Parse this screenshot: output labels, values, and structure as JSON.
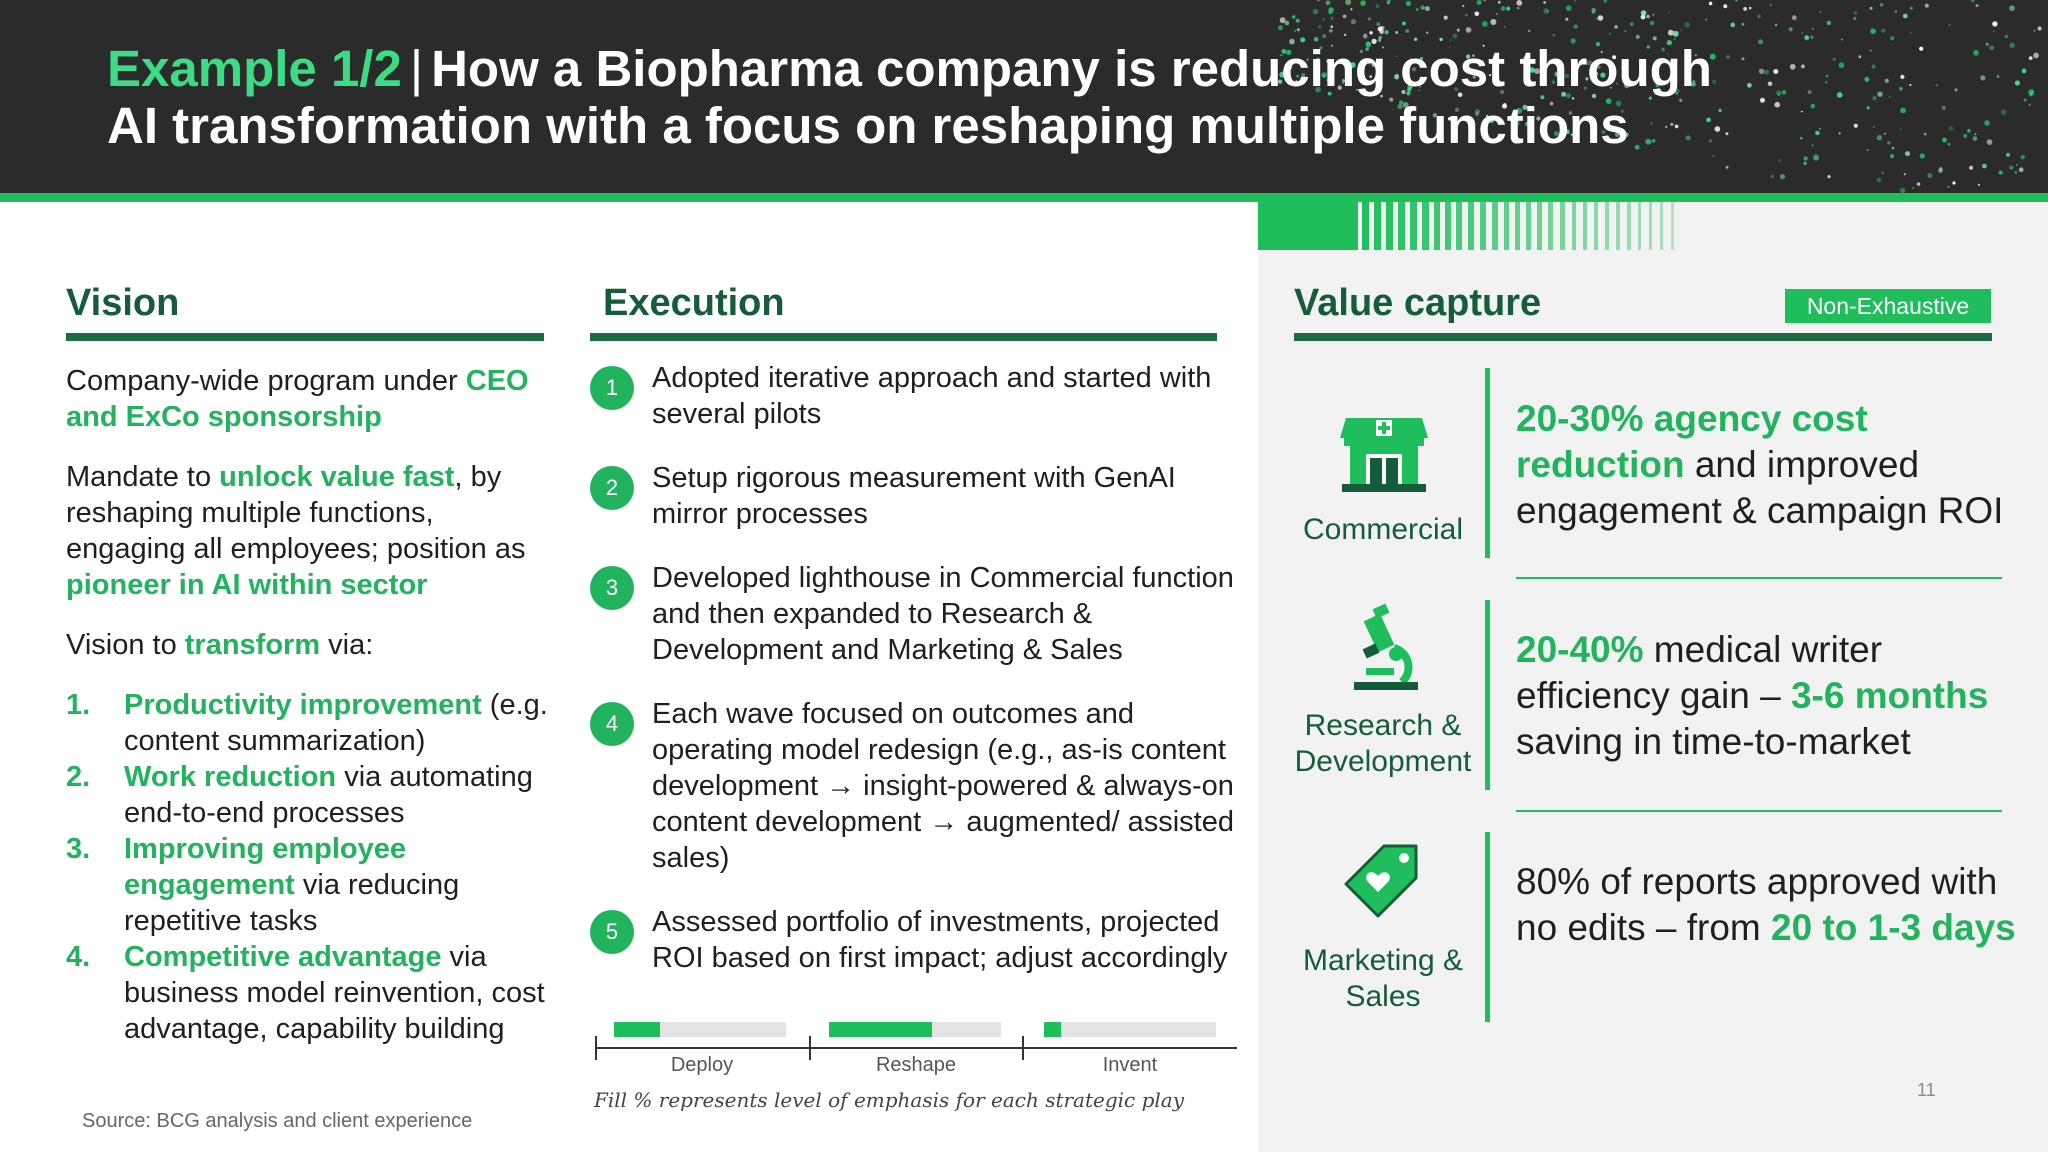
{
  "header": {
    "title_accent": "Example 1/2",
    "title_separator": "|",
    "title_line1": "How a Biopharma company is reducing cost through",
    "title_line2": "AI transformation with a focus on reshaping multiple functions"
  },
  "vision": {
    "heading": "Vision",
    "p1": {
      "a": "Company-wide program under ",
      "b": "CEO and ExCo sponsorship"
    },
    "p2": {
      "a": "Mandate to ",
      "b": "unlock value fast",
      "c": ", by reshaping multiple functions, engaging all employees; position as ",
      "d": "pioneer in AI within sector"
    },
    "p3": {
      "a": "Vision to ",
      "b": "transform",
      "c": " via:"
    },
    "list": [
      {
        "num": "1.",
        "bold": "Productivity improvement",
        "rest": " (e.g. content summarization)"
      },
      {
        "num": "2.",
        "bold": "Work reduction",
        "rest": " via automating end-to-end processes"
      },
      {
        "num": "3.",
        "bold": "Improving employee engagement",
        "rest": " via reducing repetitive tasks"
      },
      {
        "num": "4.",
        "bold": "Competitive advantage",
        "rest": " via business model reinvention, cost advantage, capability building"
      }
    ]
  },
  "execution": {
    "heading": "Execution",
    "steps": [
      {
        "num": "1",
        "text": "Adopted iterative approach and started with several pilots"
      },
      {
        "num": "2",
        "text": "Setup rigorous measurement with GenAI mirror processes"
      },
      {
        "num": "3",
        "text": "Developed lighthouse in Commercial function and then expanded to Research & Development and Marketing & Sales"
      },
      {
        "num": "4",
        "text": "Each wave focused on outcomes and operating model redesign (e.g., as-is content development → insight-powered & always-on content development → augmented/ assisted sales)"
      },
      {
        "num": "5",
        "text": "Assessed portfolio of investments, projected ROI based on first impact; adjust accordingly"
      }
    ],
    "emphasis": [
      {
        "label": "Deploy",
        "fill": 0.27
      },
      {
        "label": "Reshape",
        "fill": 0.6
      },
      {
        "label": "Invent",
        "fill": 0.1
      }
    ],
    "emphasis_note": "Fill % represents level of emphasis for each strategic play"
  },
  "value_capture": {
    "heading": "Value capture",
    "badge": "Non-Exhaustive",
    "rows": [
      {
        "label": "Commercial",
        "icon": "storefront-icon",
        "t1": "20-30% agency cost reduction",
        "t2": " and improved engagement & campaign ROI"
      },
      {
        "label": "Research & Development",
        "icon": "microscope-icon",
        "t1": "20-40%",
        "t2": " medical writer efficiency gain – ",
        "t3": "3-6 months",
        "t4": " saving in time-to-market"
      },
      {
        "label": "Marketing & Sales",
        "icon": "price-tag-icon",
        "t1": "80% of reports approved with no edits – from ",
        "t2": "20 to 1-3 days"
      }
    ]
  },
  "footer": {
    "source": "Source: BCG analysis and client experience",
    "page": "11"
  },
  "colors": {
    "accent": "#22b35e",
    "dark_green": "#145c3a",
    "bright_green": "#1fbd5c",
    "header_bg": "#2b2b2b"
  }
}
